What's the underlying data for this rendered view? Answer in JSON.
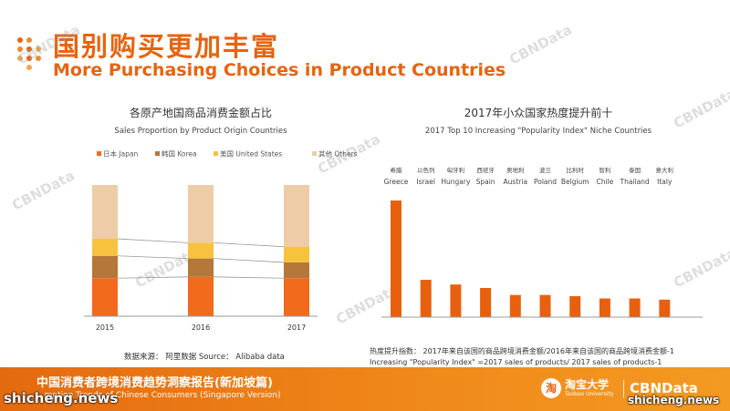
{
  "header": {
    "title_cn": "国别购买更加丰富",
    "title_en": "More Purchasing Choices in Product Countries"
  },
  "watermark": "CBNData",
  "footer": {
    "title_cn": "中国消费者跨境消费趋势洞察报告(新加坡篇)",
    "subtitle_en": "...mption Trends of Chinese Consumers (Singapore Version)",
    "brand1_cn": "淘宝大学",
    "brand1_en": "Taobao University",
    "brand1_icon": "淘",
    "brand2": "CBNData",
    "site_left": "shicheng.news",
    "site_right": "shicheng.news"
  },
  "colors": {
    "accent": "#e8630f",
    "japan": "#f26b1d",
    "korea": "#b5773a",
    "us": "#f7c23e",
    "others": "#eecca8",
    "bar_right": "#e8600e"
  },
  "chart_data": [
    {
      "type": "bar",
      "stacked": true,
      "title": "各原产地国商品消费金额占比",
      "subtitle": "Sales Proportion by Product Origin Countries",
      "categories": [
        "2015",
        "2016",
        "2017"
      ],
      "series": [
        {
          "name": "日本 Japan",
          "values": [
            29,
            30,
            29
          ]
        },
        {
          "name": "韩国 Korea",
          "values": [
            17,
            14,
            12
          ]
        },
        {
          "name": "美国 United States",
          "values": [
            13,
            12,
            12
          ]
        },
        {
          "name": "其他 Others",
          "values": [
            41,
            44,
            47
          ]
        }
      ],
      "ylim": [
        0,
        100
      ],
      "grid": false,
      "legend": "top",
      "source": "数据来源： 阿里数据  Source： Alibaba data"
    },
    {
      "type": "bar",
      "title": "2017年小众国家热度提升前十",
      "subtitle": "2017 Top 10 Increasing \"Popularity Index\" Niche Countries",
      "categories": [
        {
          "cn": "希腊",
          "en": "Greece"
        },
        {
          "cn": "以色列",
          "en": "Israel"
        },
        {
          "cn": "匈牙利",
          "en": "Hungary"
        },
        {
          "cn": "西班牙",
          "en": "Spain"
        },
        {
          "cn": "奥地利",
          "en": "Austria"
        },
        {
          "cn": "波兰",
          "en": "Poland"
        },
        {
          "cn": "比利时",
          "en": "Belgium"
        },
        {
          "cn": "智利",
          "en": "Chile"
        },
        {
          "cn": "泰国",
          "en": "Thailand"
        },
        {
          "cn": "意大利",
          "en": "Italy"
        }
      ],
      "values": [
        100,
        32,
        28,
        25,
        19,
        19,
        18,
        16,
        16,
        15
      ],
      "grid": false,
      "note_cn": "热度提升指数： 2017年来自该国的商品跨境消费金额/2016年来自该国的商品跨境消费金额-1",
      "note_en": "Increasing \"Popularity Index\" =2017 sales of products/ 2017 sales of products-1"
    }
  ]
}
